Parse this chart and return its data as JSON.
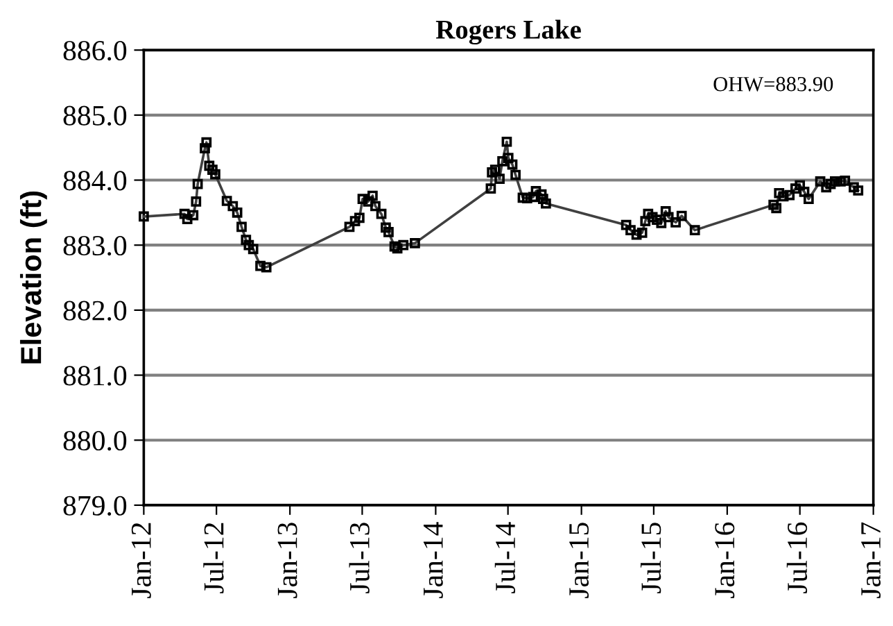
{
  "chart_data": {
    "type": "line",
    "title": "Rogers Lake",
    "ylabel": "Elevation (ft)",
    "annotations": [
      "OHW=883.90"
    ],
    "x": [
      "2012-01-01",
      "2012-04-12",
      "2012-04-19",
      "2012-05-04",
      "2012-05-11",
      "2012-05-15",
      "2012-06-02",
      "2012-06-06",
      "2012-06-13",
      "2012-06-21",
      "2012-06-28",
      "2012-07-27",
      "2012-08-11",
      "2012-08-22",
      "2012-09-02",
      "2012-09-13",
      "2012-09-20",
      "2012-10-01",
      "2012-10-19",
      "2012-11-03",
      "2013-05-30",
      "2013-06-13",
      "2013-06-24",
      "2013-07-02",
      "2013-07-16",
      "2013-07-27",
      "2013-08-03",
      "2013-08-18",
      "2013-08-29",
      "2013-09-05",
      "2013-09-20",
      "2013-09-27",
      "2013-10-12",
      "2013-11-10",
      "2014-05-19",
      "2014-05-22",
      "2014-05-30",
      "2014-06-10",
      "2014-06-17",
      "2014-06-28",
      "2014-07-02",
      "2014-07-12",
      "2014-07-20",
      "2014-08-07",
      "2014-08-18",
      "2014-09-02",
      "2014-09-09",
      "2014-09-23",
      "2014-09-27",
      "2014-10-04",
      "2015-04-23",
      "2015-05-04",
      "2015-05-19",
      "2015-06-02",
      "2015-06-10",
      "2015-06-17",
      "2015-06-28",
      "2015-07-09",
      "2015-07-20",
      "2015-07-31",
      "2015-08-07",
      "2015-08-25",
      "2015-09-09",
      "2015-10-12",
      "2016-04-26",
      "2016-05-03",
      "2016-05-10",
      "2016-05-21",
      "2016-06-05",
      "2016-06-20",
      "2016-07-01",
      "2016-07-12",
      "2016-07-23",
      "2016-08-21",
      "2016-09-05",
      "2016-09-16",
      "2016-09-27",
      "2016-10-11",
      "2016-10-22",
      "2016-11-13",
      "2016-11-24"
    ],
    "series": [
      {
        "color": "#404040",
        "values": [
          883.44,
          883.48,
          883.4,
          883.46,
          883.67,
          883.94,
          884.49,
          884.58,
          884.22,
          884.16,
          884.09,
          883.68,
          883.6,
          883.5,
          883.28,
          883.08,
          883.0,
          882.94,
          882.68,
          882.66,
          883.28,
          883.37,
          883.42,
          883.71,
          883.67,
          883.76,
          883.6,
          883.48,
          883.27,
          883.2,
          882.98,
          882.95,
          883.0,
          883.03,
          883.87,
          884.12,
          884.16,
          884.02,
          884.29,
          884.59,
          884.34,
          884.24,
          884.08,
          883.73,
          883.72,
          883.74,
          883.83,
          883.78,
          883.71,
          883.64,
          883.31,
          883.23,
          883.16,
          883.19,
          883.37,
          883.48,
          883.43,
          883.39,
          883.34,
          883.52,
          883.43,
          883.35,
          883.45,
          883.23,
          883.62,
          883.57,
          883.8,
          883.75,
          883.77,
          883.87,
          883.92,
          883.82,
          883.71,
          883.98,
          883.89,
          883.94,
          883.98,
          883.98,
          883.99,
          883.89,
          883.84
        ]
      }
    ],
    "marker": "square",
    "line_style": "solid",
    "grid": "y",
    "legend": false,
    "xlim": [
      "2012-01-01",
      "2017-01-01"
    ],
    "xticks": [
      {
        "value": "2012-01-01",
        "label": "Jan-12"
      },
      {
        "value": "2012-07-01",
        "label": "Jul-12"
      },
      {
        "value": "2013-01-01",
        "label": "Jan-13"
      },
      {
        "value": "2013-07-01",
        "label": "Jul-13"
      },
      {
        "value": "2014-01-01",
        "label": "Jan-14"
      },
      {
        "value": "2014-07-01",
        "label": "Jul-14"
      },
      {
        "value": "2015-01-01",
        "label": "Jan-15"
      },
      {
        "value": "2015-07-01",
        "label": "Jul-15"
      },
      {
        "value": "2016-01-01",
        "label": "Jan-16"
      },
      {
        "value": "2016-07-01",
        "label": "Jul-16"
      },
      {
        "value": "2017-01-01",
        "label": "Jan-17"
      }
    ],
    "ylim": [
      879,
      886
    ],
    "yticks": [
      {
        "value": 879,
        "label": "879.0"
      },
      {
        "value": 880,
        "label": "880.0"
      },
      {
        "value": 881,
        "label": "881.0"
      },
      {
        "value": 882,
        "label": "882.0"
      },
      {
        "value": 883,
        "label": "883.0"
      },
      {
        "value": 884,
        "label": "884.0"
      },
      {
        "value": 885,
        "label": "885.0"
      },
      {
        "value": 886,
        "label": "886.0"
      }
    ]
  }
}
